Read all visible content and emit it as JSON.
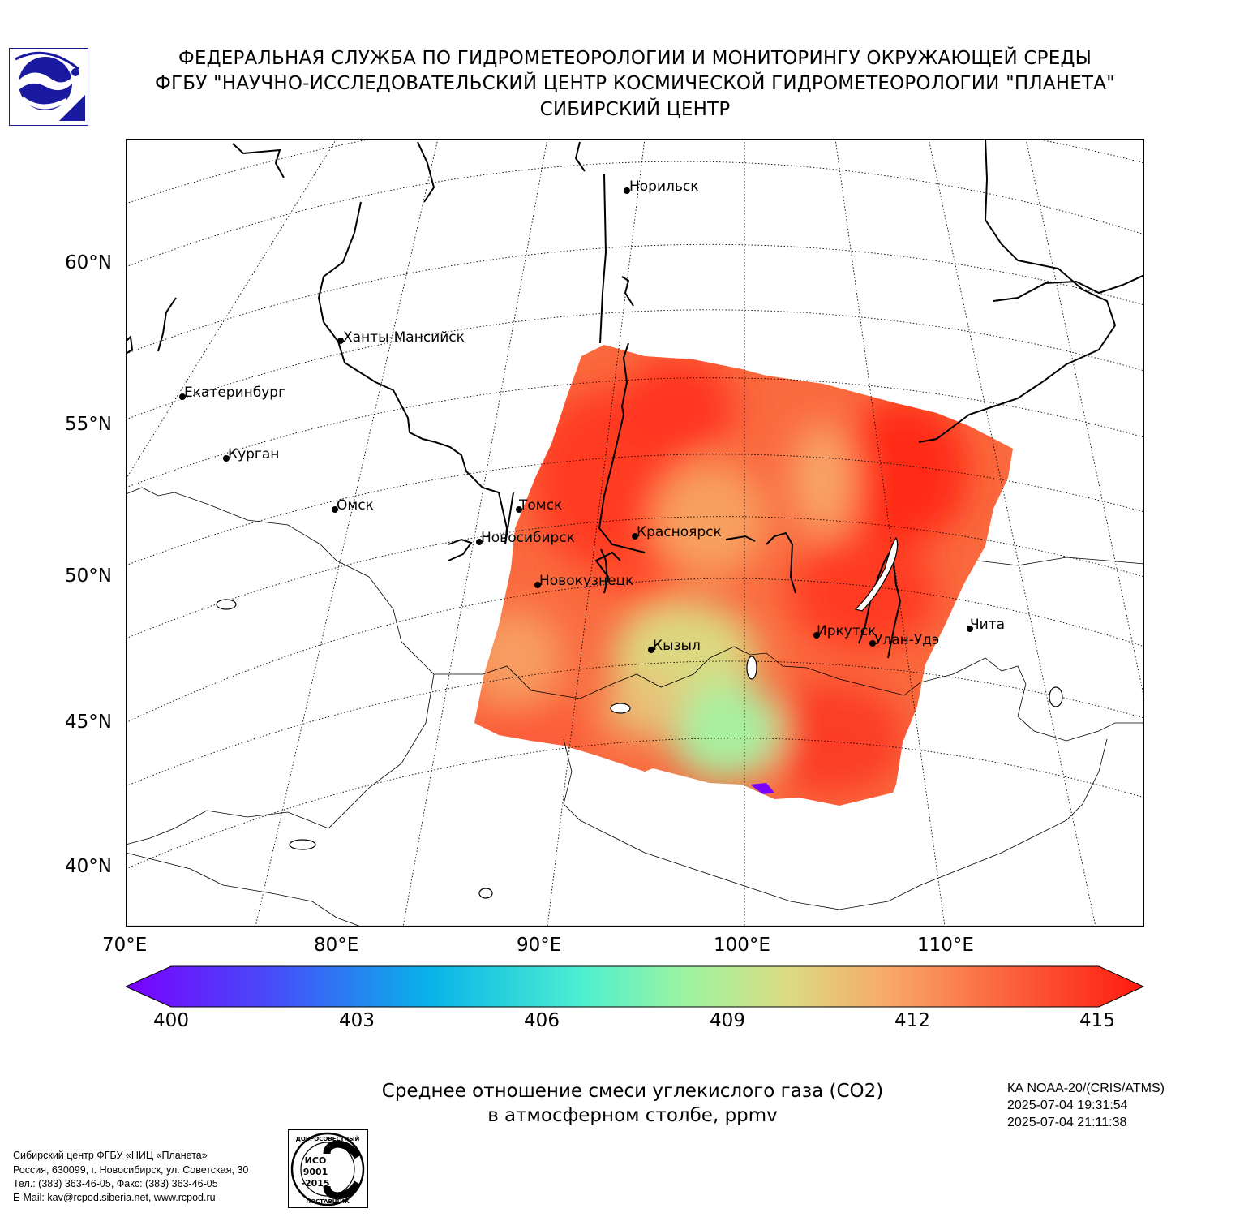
{
  "header": {
    "line1": "ФЕДЕРАЛЬНАЯ СЛУЖБА ПО ГИДРОМЕТЕОРОЛОГИИ И МОНИТОРИНГУ ОКРУЖАЮЩЕЙ СРЕДЫ",
    "line2": "ФГБУ \"НАУЧНО-ИССЛЕДОВАТЕЛЬСКИЙ ЦЕНТР КОСМИЧЕСКОЙ ГИДРОМЕТЕОРОЛОГИИ \"ПЛАНЕТА\"",
    "line3": "СИБИРСКИЙ ЦЕНТР"
  },
  "map": {
    "lat_labels": [
      "60°N",
      "55°N",
      "50°N",
      "45°N",
      "40°N"
    ],
    "lon_labels": [
      "70°E",
      "80°E",
      "90°E",
      "100°E",
      "110°E"
    ],
    "cities": [
      {
        "name": "Норильск"
      },
      {
        "name": "Ханты-Мансийск"
      },
      {
        "name": "Екатеринбург"
      },
      {
        "name": "Курган"
      },
      {
        "name": "Омск"
      },
      {
        "name": "Томск"
      },
      {
        "name": "Новосибирск"
      },
      {
        "name": "Красноярск"
      },
      {
        "name": "Новокузнецк"
      },
      {
        "name": "Кызыл"
      },
      {
        "name": "Иркутск"
      },
      {
        "name": "Улан-Удэ"
      },
      {
        "name": "Чита"
      }
    ],
    "colors": {
      "low": "#7a00ff",
      "mid": "#9cf4a0",
      "high": "#ff1a10"
    }
  },
  "colorbar": {
    "ticks": [
      "400",
      "403",
      "406",
      "409",
      "412",
      "415"
    ],
    "min": 400,
    "max": 415
  },
  "caption": {
    "line1": "Среднее отношение смеси углекислого газа (CO2)",
    "line2": "в атмосферном столбе, ppmv"
  },
  "satellite": {
    "name": "КА NOAA-20/(CRIS/ATMS)",
    "start": "2025-07-04 19:31:54",
    "end": "2025-07-04 21:11:38"
  },
  "footer": {
    "line1": "Сибирский центр ФГБУ «НИЦ «Планета»",
    "line2": "Россия, 630099, г. Новосибирск, ул. Советская, 30",
    "line3": "Тел.: (383) 363-46-05, Факс: (383) 363-46-05",
    "line4": "E-Mail: kav@rcpod.siberia.net, www.rcpod.ru"
  },
  "iso_badge": {
    "top": "ДОБРОСОВЕСТНЫЙ",
    "iso": "ИСО",
    "num": "9001",
    "year": "-2015",
    "bottom": "ПОСТАВЩИК"
  }
}
